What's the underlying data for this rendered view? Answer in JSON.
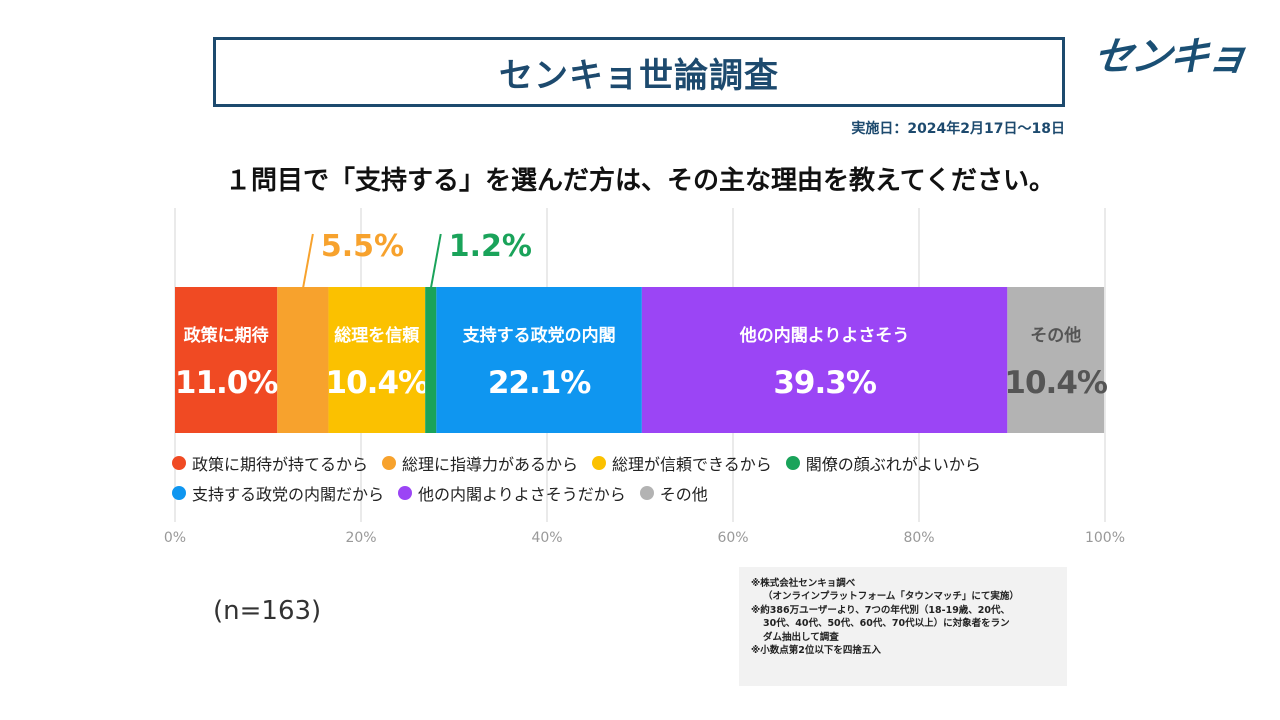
{
  "header": {
    "title": "センキョ世論調査",
    "logo": "センキョ",
    "date": "実施日：2024年2月17日～18日",
    "question": "１問目で「支持する」を選んだ方は、その主な理由を教えてください。"
  },
  "sample": "(n=163)",
  "notes": [
    "※株式会社センキョ調べ",
    "（オンラインプラットフォーム「タウンマッチ」にて実施）",
    "※約386万ユーザーより、7つの年代別（18-19歳、20代、",
    "30代、40代、50代、60代、70代以上）に対象者をラン",
    "ダム抽出して調査",
    "※小数点第2位以下を四捨五入"
  ],
  "chart_data": {
    "type": "bar",
    "orientation": "horizontal-stacked",
    "xlim": [
      0,
      100
    ],
    "x_ticks": [
      "0%",
      "20%",
      "40%",
      "60%",
      "80%",
      "100%"
    ],
    "grid": true,
    "legend_position": "below",
    "series": [
      {
        "name": "政策に期待が持てるから",
        "bar_label": "政策に期待",
        "value": 11.0,
        "display": "11.0%",
        "color": "#f04a23",
        "text_color": "#ffffff"
      },
      {
        "name": "総理に指導力があるから",
        "bar_label": "",
        "value": 5.5,
        "display": "5.5%",
        "color": "#f7a22d",
        "text_color": "#f7a22d"
      },
      {
        "name": "総理が信頼できるから",
        "bar_label": "総理を信頼",
        "value": 10.4,
        "display": "10.4%",
        "color": "#fbc100",
        "text_color": "#ffffff"
      },
      {
        "name": "閣僚の顔ぶれがよいから",
        "bar_label": "",
        "value": 1.2,
        "display": "1.2%",
        "color": "#1aa35a",
        "text_color": "#1aa35a"
      },
      {
        "name": "支持する政党の内閣だから",
        "bar_label": "支持する政党の内閣",
        "value": 22.1,
        "display": "22.1%",
        "color": "#0f96f0",
        "text_color": "#ffffff"
      },
      {
        "name": "他の内閣よりよさそうだから",
        "bar_label": "他の内閣よりよさそう",
        "value": 39.3,
        "display": "39.3%",
        "color": "#9b45f5",
        "text_color": "#ffffff"
      },
      {
        "name": "その他",
        "bar_label": "その他",
        "value": 10.4,
        "display": "10.4%",
        "color": "#b3b3b3",
        "text_color": "#555555"
      }
    ]
  }
}
